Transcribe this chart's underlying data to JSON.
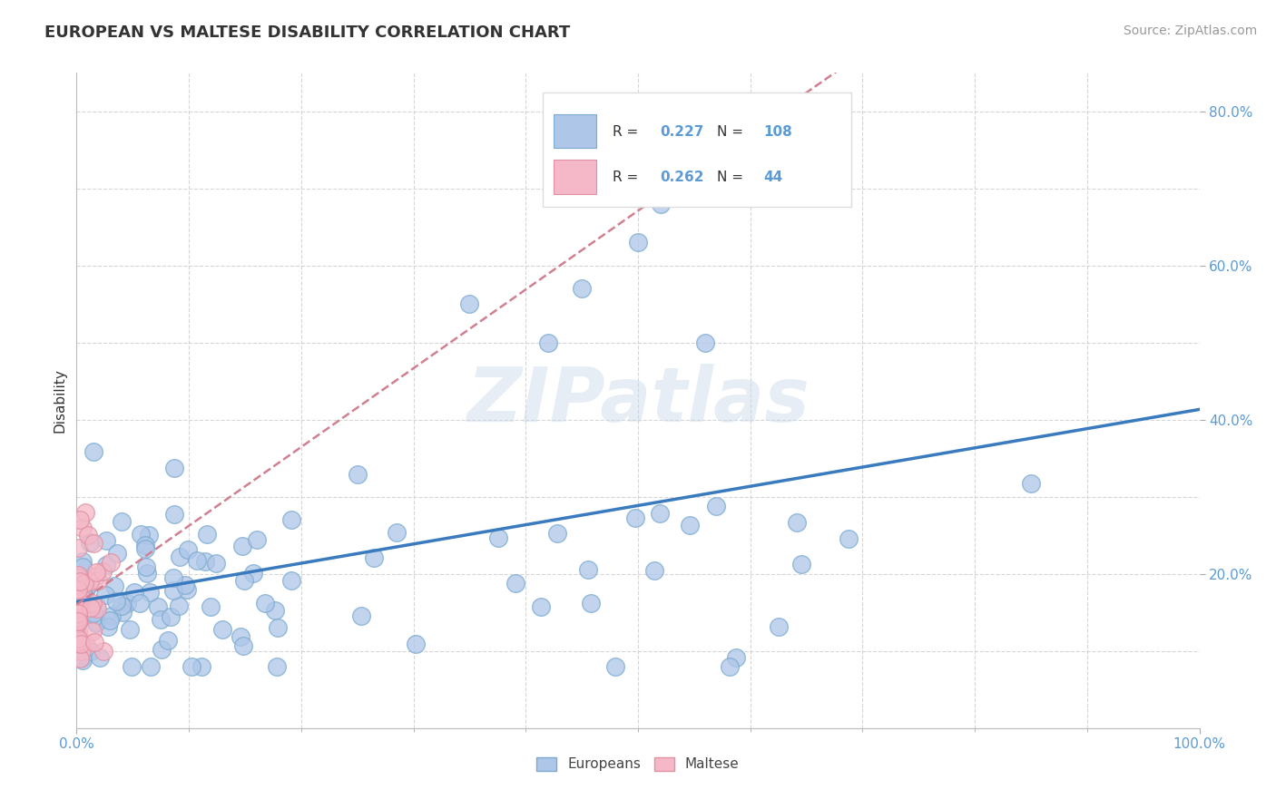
{
  "title": "EUROPEAN VS MALTESE DISABILITY CORRELATION CHART",
  "source": "Source: ZipAtlas.com",
  "ylabel": "Disability",
  "xlim": [
    0.0,
    1.0
  ],
  "ylim": [
    0.0,
    0.85
  ],
  "european_color": "#aec6e8",
  "european_edge": "#7aaad0",
  "maltese_color": "#f4b8c8",
  "maltese_edge": "#e090a0",
  "trendline_european_color": "#3a7abf",
  "trendline_maltese_color": "#d08090",
  "legend_R_european": "0.227",
  "legend_N_european": "108",
  "legend_R_maltese": "0.262",
  "legend_N_maltese": "44",
  "watermark": "ZIPatlas",
  "background_color": "#ffffff",
  "grid_color": "#cccccc",
  "tick_color": "#5b9bd5",
  "title_color": "#333333",
  "ylabel_color": "#333333",
  "source_color": "#999999"
}
